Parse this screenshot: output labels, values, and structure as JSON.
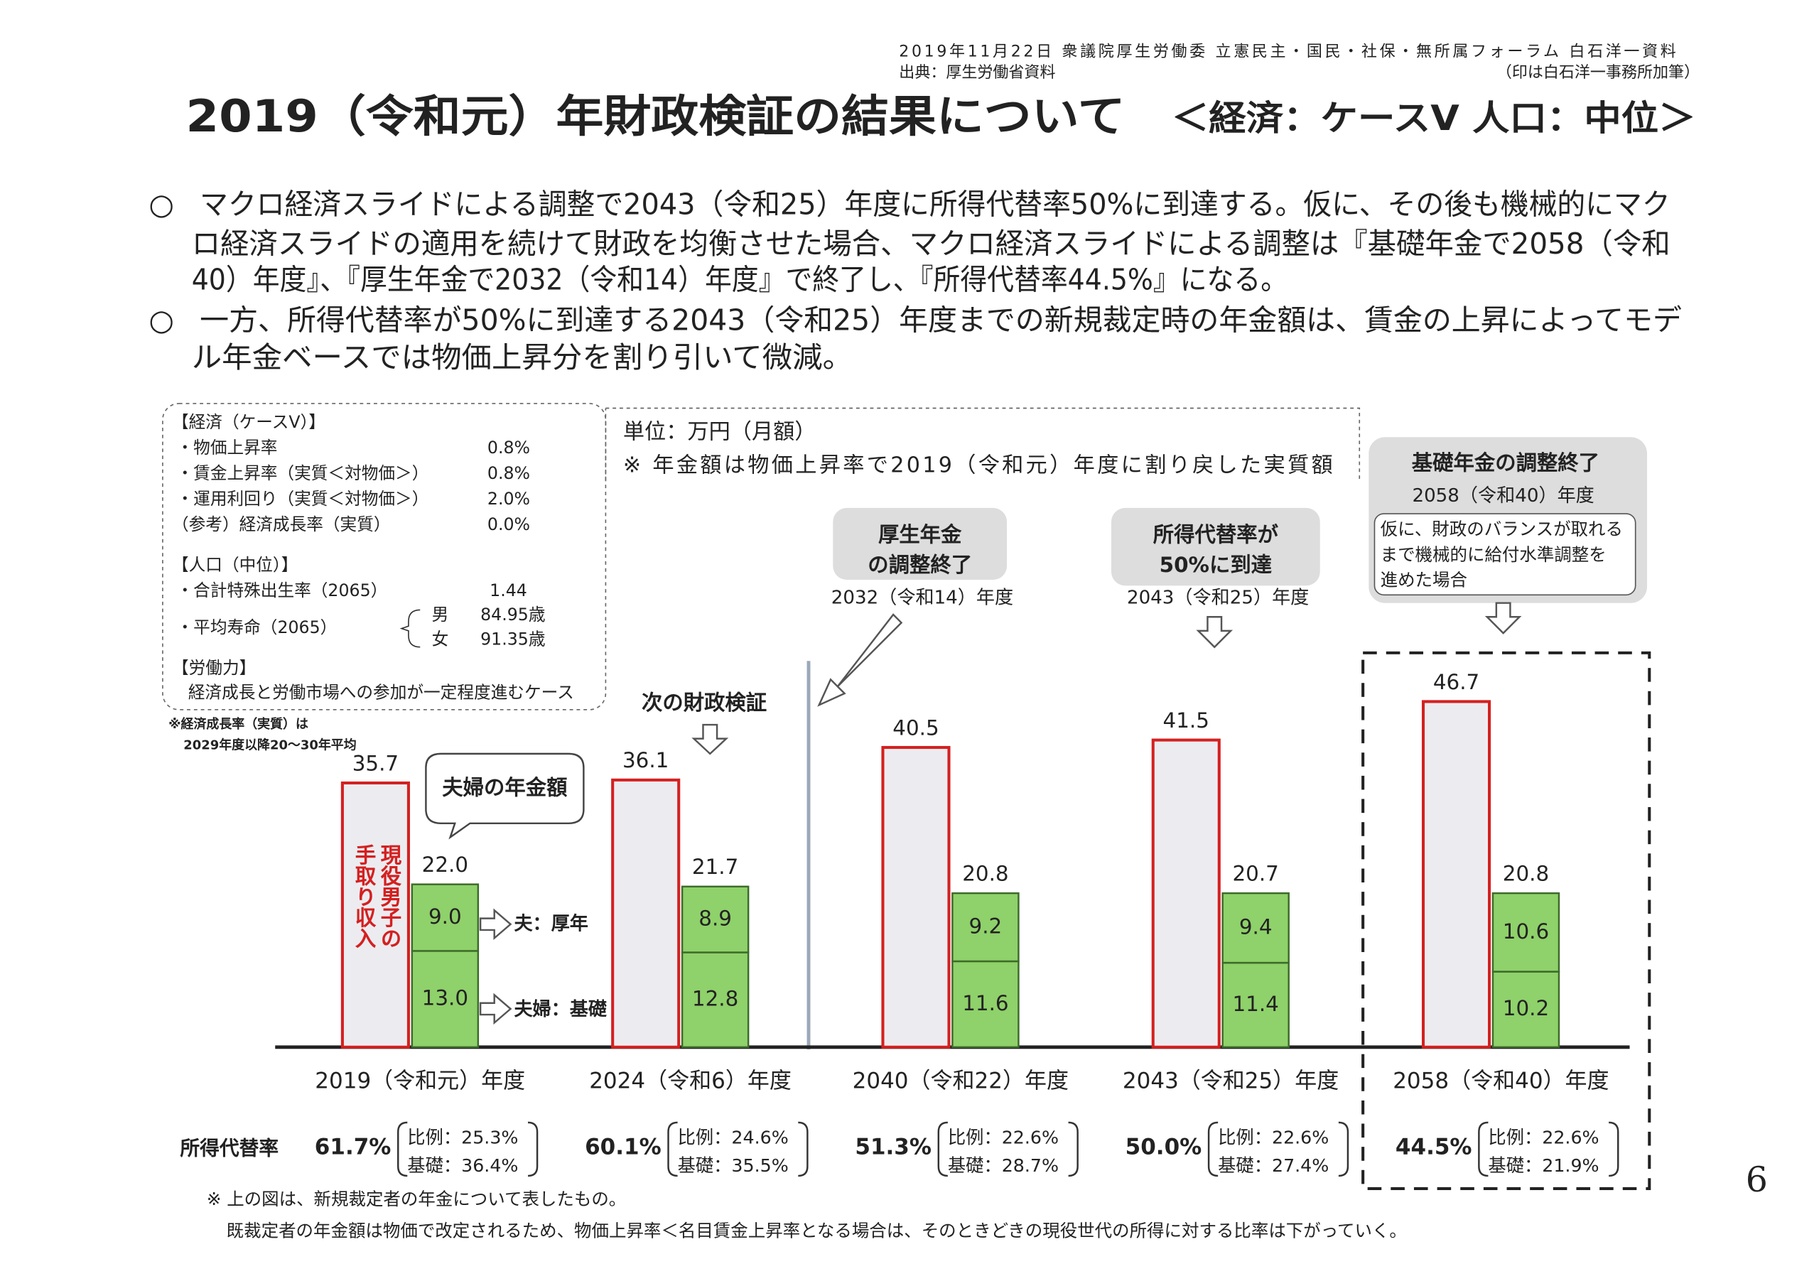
{
  "header": {
    "line1": "2019年11月22日 衆議院厚生労働委 立憲民主・国民・社保・無所属フォーラム 白石洋一資料",
    "source": "出典：厚生労働省資料",
    "note": "（印は白石洋一事務所加筆）"
  },
  "title": "2019（令和元）年財政検証の結果について",
  "subtitle": "＜経済：ケースⅤ 人口：中位＞",
  "bullets": [
    [
      "○",
      "マクロ経済スライドによる調整で2043（令和25）年度に所得代替率50%に到達する。仮に、その後も機械的にマク",
      "ロ経済スライドの適用を続けて財政を均衡させた場合、マクロ経済スライドによる調整は『基礎年金で2058（令和",
      "40）年度』、『厚生年金で2032（令和14）年度』で終了し、『所得代替率44.5%』になる。"
    ],
    [
      "○",
      "一方、所得代替率が50%に到達する2043（令和25）年度までの新規裁定時の年金額は、賃金の上昇によってモデ",
      "ル年金ベースでは物価上昇分を割り引いて微減。"
    ]
  ],
  "assumptions": {
    "economy": {
      "heading": "【経済（ケースⅤ）】",
      "rows": [
        [
          "・物価上昇率",
          "0.8%"
        ],
        [
          "・賃金上昇率（実質＜対物価＞）",
          "0.8%"
        ],
        [
          "・運用利回り（実質＜対物価＞）",
          "2.0%"
        ],
        [
          "（参考）経済成長率（実質）",
          "0.0%"
        ]
      ]
    },
    "population": {
      "heading": "【人口（中位）】",
      "rows": [
        [
          "・合計特殊出生率（2065）",
          "1.44"
        ]
      ],
      "life": {
        "label": "・平均寿命（2065）",
        "male": [
          "男",
          "84.95歳"
        ],
        "female": [
          "女",
          "91.35歳"
        ]
      }
    },
    "labor": {
      "heading": "【労働力】",
      "text": "経済成長と労働市場への参加が一定程度進むケース"
    },
    "footnote": [
      "※経済成長率（実質）は",
      "2029年度以降20～30年平均"
    ]
  },
  "unit": {
    "line1": "単位：万円（月額）",
    "line2": "※ 年金額は物価上昇率で2019（令和元）年度に割り戻した実質額"
  },
  "callouts": {
    "couple": "夫婦の年金額",
    "next": "次の財政検証",
    "kosei": {
      "lines": [
        "厚生年金",
        "の調整終了"
      ],
      "year": "2032（令和14）年度"
    },
    "rate50": {
      "lines": [
        "所得代替率が",
        "50%に到達"
      ],
      "year": "2043（令和25）年度"
    },
    "kiso": {
      "title": "基礎年金の調整終了",
      "year": "2058（令和40）年度",
      "lines": [
        "仮に、財政のバランスが取れる",
        "まで機械的に給付水準調整を",
        "進めた場合"
      ]
    }
  },
  "chart_data": {
    "type": "bar",
    "categories": [
      "2019（令和元）年度",
      "2024（令和6）年度",
      "2040（令和22）年度",
      "2043（令和25）年度",
      "2058（令和40）年度"
    ],
    "series": [
      {
        "name": "現役男子の手取り収入",
        "color": "#d42020",
        "values": [
          35.7,
          36.1,
          40.5,
          41.5,
          46.7
        ]
      },
      {
        "name": "夫婦：基礎",
        "color": "#8fd16a",
        "values": [
          13.0,
          12.8,
          11.6,
          11.4,
          10.2
        ],
        "value_labels": [
          "13.0",
          "12.8",
          "11.6",
          "11.4",
          "10.2"
        ]
      },
      {
        "name": "夫：厚年",
        "color": "#8fd16a",
        "values": [
          9.0,
          8.9,
          9.2,
          9.4,
          10.6
        ],
        "value_labels": [
          "9.0",
          "8.9",
          "9.2",
          "9.4",
          "10.6"
        ]
      }
    ],
    "stack_total_labels": [
      "22.0",
      "21.7",
      "20.8",
      "20.7",
      "20.8"
    ]
  },
  "replacement": {
    "label": "所得代替率",
    "items": [
      [
        "61.7%",
        "比例：25.3%",
        "基礎：36.4%"
      ],
      [
        "60.1%",
        "比例：24.6%",
        "基礎：35.5%"
      ],
      [
        "51.3%",
        "比例：22.6%",
        "基礎：28.7%"
      ],
      [
        "50.0%",
        "比例：22.6%",
        "基礎：27.4%"
      ],
      [
        "44.5%",
        "比例：22.6%",
        "基礎：21.9%"
      ]
    ]
  },
  "notes": [
    "※ 上の図は、新規裁定者の年金について表したもの。",
    "既裁定者の年金額は物価で改定されるため、物価上昇率＜名目賃金上昇率となる場合は、そのときどきの現役世代の所得に対する比率は下がっていく。"
  ],
  "page_number": "6"
}
